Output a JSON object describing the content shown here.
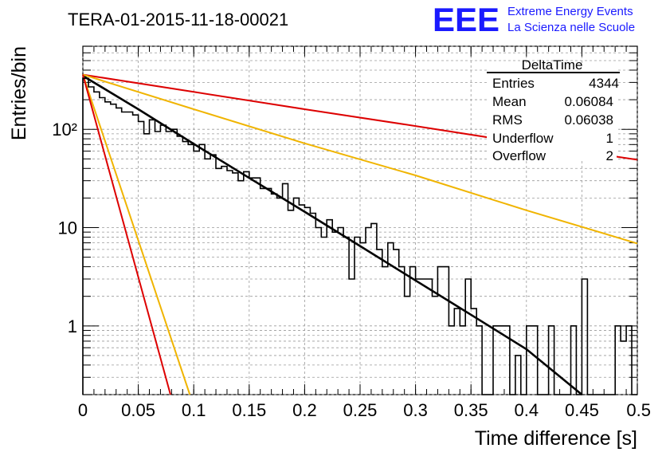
{
  "chart_data": {
    "type": "line",
    "title": "TERA-01-2015-11-18-00021",
    "xlabel": "Time difference [s]",
    "ylabel": "Entries/bin",
    "xlim": [
      0,
      0.5
    ],
    "ylim": [
      0.2,
      700
    ],
    "yscale": "log",
    "grid": true,
    "x_ticks": [
      0,
      0.05,
      0.1,
      0.15,
      0.2,
      0.25,
      0.3,
      0.35,
      0.4,
      0.45,
      0.5
    ],
    "x_tick_labels": [
      "0",
      "0.05",
      "0.1",
      "0.15",
      "0.2",
      "0.25",
      "0.3",
      "0.35",
      "0.4",
      "0.45",
      "0.5"
    ],
    "y_ticks": [
      1,
      10,
      100
    ],
    "y_tick_labels": [
      "1",
      "10",
      "10²"
    ],
    "histogram": {
      "bin_width": 0.005,
      "x_start": 0,
      "counts": [
        330,
        270,
        240,
        210,
        190,
        180,
        165,
        150,
        150,
        140,
        120,
        90,
        125,
        95,
        110,
        95,
        100,
        85,
        75,
        70,
        60,
        70,
        50,
        55,
        40,
        42,
        38,
        36,
        30,
        37,
        32,
        32,
        25,
        25,
        22,
        20,
        28,
        15,
        20,
        17,
        16,
        14,
        10,
        8,
        12,
        9,
        10,
        8,
        3,
        8,
        7,
        10,
        11,
        6,
        4,
        7,
        6,
        4,
        2,
        4,
        3,
        3,
        3,
        2,
        4,
        4,
        1,
        1.5,
        1,
        3,
        1.5,
        1,
        0,
        0,
        1,
        1,
        1,
        0,
        0.5,
        0,
        1,
        1,
        0,
        0,
        1,
        0,
        0,
        0,
        1,
        0,
        3,
        0,
        0,
        0,
        0,
        0,
        1,
        0.7,
        1,
        0
      ]
    },
    "series": [
      {
        "color": "#000000",
        "x": [
          0.0,
          0.05,
          0.1,
          0.15,
          0.2,
          0.25,
          0.3,
          0.35,
          0.4,
          0.45
        ],
        "y": [
          350,
          160,
          71,
          32,
          14.5,
          6.5,
          2.9,
          1.3,
          0.58,
          0.2
        ]
      },
      {
        "color": "#dd0000",
        "x": [
          0.0,
          0.1,
          0.2,
          0.3,
          0.4,
          0.5
        ],
        "y": [
          360,
          240,
          160,
          108,
          72,
          49
        ]
      },
      {
        "color": "#f0b400",
        "x": [
          0.0,
          0.1,
          0.2,
          0.3,
          0.4,
          0.5
        ],
        "y": [
          360,
          160,
          72,
          34,
          15,
          6.9
        ]
      },
      {
        "color": "#f0b400",
        "x": [
          0.0,
          0.0965
        ],
        "y": [
          360,
          0.2
        ]
      },
      {
        "color": "#dd0000",
        "x": [
          0.0,
          0.079
        ],
        "y": [
          360,
          0.2
        ]
      }
    ],
    "stats_box": {
      "title": "DeltaTime",
      "rows": [
        {
          "label": "Entries",
          "value": "4344"
        },
        {
          "label": "Mean",
          "value": "0.06084"
        },
        {
          "label": "RMS",
          "value": "0.06038"
        },
        {
          "label": "Underflow",
          "value": "1"
        },
        {
          "label": "Overflow",
          "value": "2"
        }
      ]
    }
  },
  "logo": {
    "mark": "EEE",
    "line1": "Extreme Energy Events",
    "line2": "La Scienza nelle Scuole",
    "color": "#1a1aff"
  },
  "colors": {
    "histogram": "#000000",
    "fit": "#000000",
    "red": "#dd0000",
    "yellow": "#f0b400",
    "grid": "#9a9a9a"
  }
}
